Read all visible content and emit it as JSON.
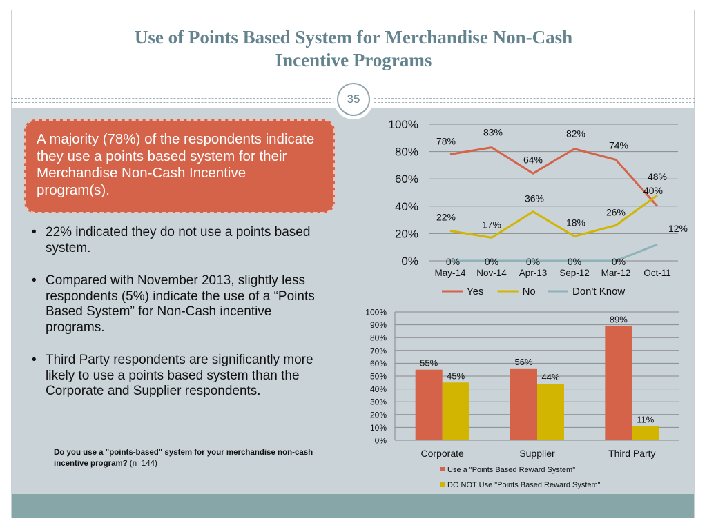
{
  "slide": {
    "title_line1": "Use of Points Based System for Merchandise Non-Cash",
    "title_line2": "Incentive Programs",
    "page_number": "35",
    "callout": "A majority (78%) of the respondents indicate they use a points based system  for their Merchandise Non-Cash Incentive program(s).",
    "bullet_marker": "•",
    "bullets": [
      "22% indicated they do not use a points based system.",
      "Compared with November 2013, slightly less respondents (5%) indicate the use of a “Points Based System” for Non-Cash incentive programs.",
      "Third Party respondents are significantly more likely to use a points based system than the Corporate and Supplier respondents."
    ],
    "note_question": "Do you use a \"points-based\" system for your merchandise non-cash incentive program?",
    "note_n": " (n=144)"
  },
  "colors": {
    "title": "#63838e",
    "orange": "#d5634a",
    "yellow": "#d1b500",
    "teal": "#8fb2b8",
    "panel": "#c9d3d8",
    "footer": "#87a6a8"
  },
  "chart_data": [
    {
      "type": "line",
      "categories": [
        "May-14",
        "Nov-14",
        "Apr-13",
        "Sep-12",
        "Mar-12",
        "Oct-11"
      ],
      "ylim": [
        0,
        100
      ],
      "yticks": [
        "0%",
        "20%",
        "40%",
        "60%",
        "80%",
        "100%"
      ],
      "legend_position": "bottom",
      "grid": true,
      "series": [
        {
          "name": "Yes",
          "color": "#d5634a",
          "values": [
            78,
            83,
            64,
            82,
            74,
            40
          ],
          "labels": [
            "78%",
            "83%",
            "64%",
            "82%",
            "74%",
            "40%"
          ]
        },
        {
          "name": "No",
          "color": "#d1b500",
          "values": [
            22,
            17,
            36,
            18,
            26,
            48
          ],
          "labels": [
            "22%",
            "17%",
            "36%",
            "18%",
            "26%",
            "48%"
          ]
        },
        {
          "name": "Don't Know",
          "color": "#8fb2b8",
          "values": [
            0,
            0,
            0,
            0,
            0,
            12
          ],
          "labels": [
            "0%",
            "0%",
            "0%",
            "0%",
            "0%",
            "12%"
          ]
        }
      ]
    },
    {
      "type": "bar",
      "categories": [
        "Corporate",
        "Supplier",
        "Third Party"
      ],
      "ylim": [
        0,
        100
      ],
      "yticks": [
        "0%",
        "10%",
        "20%",
        "30%",
        "40%",
        "50%",
        "60%",
        "70%",
        "80%",
        "90%",
        "100%"
      ],
      "legend_position": "bottom",
      "grid": true,
      "series": [
        {
          "name": "Use a \"Points Based Reward System\"",
          "color": "#d5634a",
          "values": [
            55,
            56,
            89
          ],
          "labels": [
            "55%",
            "56%",
            "89%"
          ]
        },
        {
          "name": "DO NOT Use \"Points Based Reward System\"",
          "color": "#d1b500",
          "values": [
            45,
            44,
            11
          ],
          "labels": [
            "45%",
            "44%",
            "11%"
          ]
        }
      ]
    }
  ]
}
